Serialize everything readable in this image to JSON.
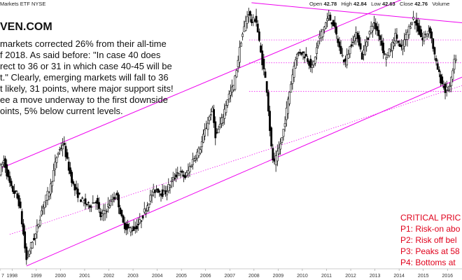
{
  "header": {
    "title": "Markets ETF",
    "exchange": "NYSE",
    "open_label": "Open",
    "open_value": "42.78",
    "high_label": "High",
    "high_value": "42.84",
    "low_label": "Low",
    "low_value": "42.63",
    "close_label": "Close",
    "close_value": "42.76",
    "volume_label": "Volume"
  },
  "brand": "VEN.COM",
  "commentary": [
    "markets corrected 26% from their all-time",
    "f 2018. As said before: \"In case 40 does",
    "rect to 36 or 31 in which case 40-45 will be",
    "t.\" Clearly, emerging markets will fall to 36",
    "t likely, 31 points, where major support sits!",
    "ee a move underway to the first downside",
    "oints, 5% below current levels."
  ],
  "critical": {
    "title": "CRITICAL PRIC",
    "items": [
      "P1: Risk-on abo",
      "P2: Risk off bel",
      "P3: Peaks at 58",
      "P4: Bottoms at"
    ]
  },
  "colors": {
    "trendline": "#ee00ee",
    "candle": "#000000",
    "critical_text": "#e0001b"
  },
  "chart_data": {
    "type": "candlestick",
    "x_tick_labels": [
      "7",
      "1998",
      "1999",
      "2000",
      "2001",
      "2002",
      "2003",
      "2004",
      "2005",
      "2006",
      "2007",
      "2008",
      "2009",
      "2010",
      "2011",
      "2012",
      "2013",
      "2014",
      "2015",
      "2016"
    ],
    "price_path": [
      [
        1997.5,
        17
      ],
      [
        1997.7,
        19
      ],
      [
        1997.85,
        16
      ],
      [
        1998.0,
        14
      ],
      [
        1998.2,
        13
      ],
      [
        1998.35,
        11
      ],
      [
        1998.5,
        6
      ],
      [
        1998.62,
        1.5
      ],
      [
        1998.8,
        4
      ],
      [
        1999.0,
        6
      ],
      [
        1999.3,
        11
      ],
      [
        1999.6,
        14
      ],
      [
        1999.9,
        20
      ],
      [
        2000.15,
        22
      ],
      [
        2000.35,
        18
      ],
      [
        2000.6,
        14
      ],
      [
        2000.9,
        12
      ],
      [
        2001.2,
        11
      ],
      [
        2001.5,
        12
      ],
      [
        2001.7,
        9
      ],
      [
        2002.0,
        11
      ],
      [
        2002.35,
        13
      ],
      [
        2002.6,
        8
      ],
      [
        2002.8,
        7
      ],
      [
        2003.1,
        7
      ],
      [
        2003.3,
        8
      ],
      [
        2003.5,
        10
      ],
      [
        2003.8,
        13
      ],
      [
        2004.0,
        14
      ],
      [
        2004.3,
        13
      ],
      [
        2004.6,
        15
      ],
      [
        2004.9,
        17
      ],
      [
        2005.2,
        16
      ],
      [
        2005.5,
        19
      ],
      [
        2005.8,
        21
      ],
      [
        2006.0,
        24
      ],
      [
        2006.3,
        28
      ],
      [
        2006.45,
        23
      ],
      [
        2006.7,
        26
      ],
      [
        2006.95,
        30
      ],
      [
        2007.2,
        32
      ],
      [
        2007.5,
        40
      ],
      [
        2007.8,
        45
      ],
      [
        2007.95,
        43
      ],
      [
        2008.1,
        44
      ],
      [
        2008.3,
        38
      ],
      [
        2008.55,
        32
      ],
      [
        2008.75,
        21
      ],
      [
        2008.85,
        18
      ],
      [
        2009.0,
        20
      ],
      [
        2009.2,
        23
      ],
      [
        2009.5,
        31
      ],
      [
        2009.75,
        37
      ],
      [
        2009.95,
        38
      ],
      [
        2010.2,
        37
      ],
      [
        2010.45,
        35
      ],
      [
        2010.7,
        40
      ],
      [
        2010.9,
        42
      ],
      [
        2011.1,
        44
      ],
      [
        2011.3,
        43
      ],
      [
        2011.6,
        38
      ],
      [
        2011.8,
        36
      ],
      [
        2012.1,
        40
      ],
      [
        2012.3,
        41
      ],
      [
        2012.5,
        37
      ],
      [
        2012.7,
        40
      ],
      [
        2012.95,
        43
      ],
      [
        2013.2,
        41
      ],
      [
        2013.45,
        37
      ],
      [
        2013.65,
        38
      ],
      [
        2013.9,
        41
      ],
      [
        2014.1,
        38
      ],
      [
        2014.35,
        41
      ],
      [
        2014.6,
        44
      ],
      [
        2014.8,
        42
      ],
      [
        2015.0,
        40
      ],
      [
        2015.3,
        42
      ],
      [
        2015.55,
        36
      ],
      [
        2015.75,
        33
      ],
      [
        2015.95,
        31
      ],
      [
        2016.15,
        32
      ],
      [
        2016.35,
        37
      ]
    ],
    "trendlines": [
      {
        "from": [
          1997.5,
          17.5
        ],
        "to": [
          2016.6,
          51.5
        ]
      },
      {
        "from": [
          1998.6,
          0.5
        ],
        "to": [
          2016.6,
          33.5
        ]
      },
      {
        "from": [
          2007.9,
          46.5
        ],
        "to": [
          2016.6,
          43.0
        ]
      }
    ],
    "horizontal_levels": [
      31,
      36,
      40
    ],
    "dotted_lines": [
      {
        "from": [
          1997.9,
          6
        ],
        "to": [
          2016.6,
          32
        ]
      }
    ],
    "xlim": [
      1997.5,
      2016.6
    ],
    "ylim": [
      0,
      46
    ]
  }
}
